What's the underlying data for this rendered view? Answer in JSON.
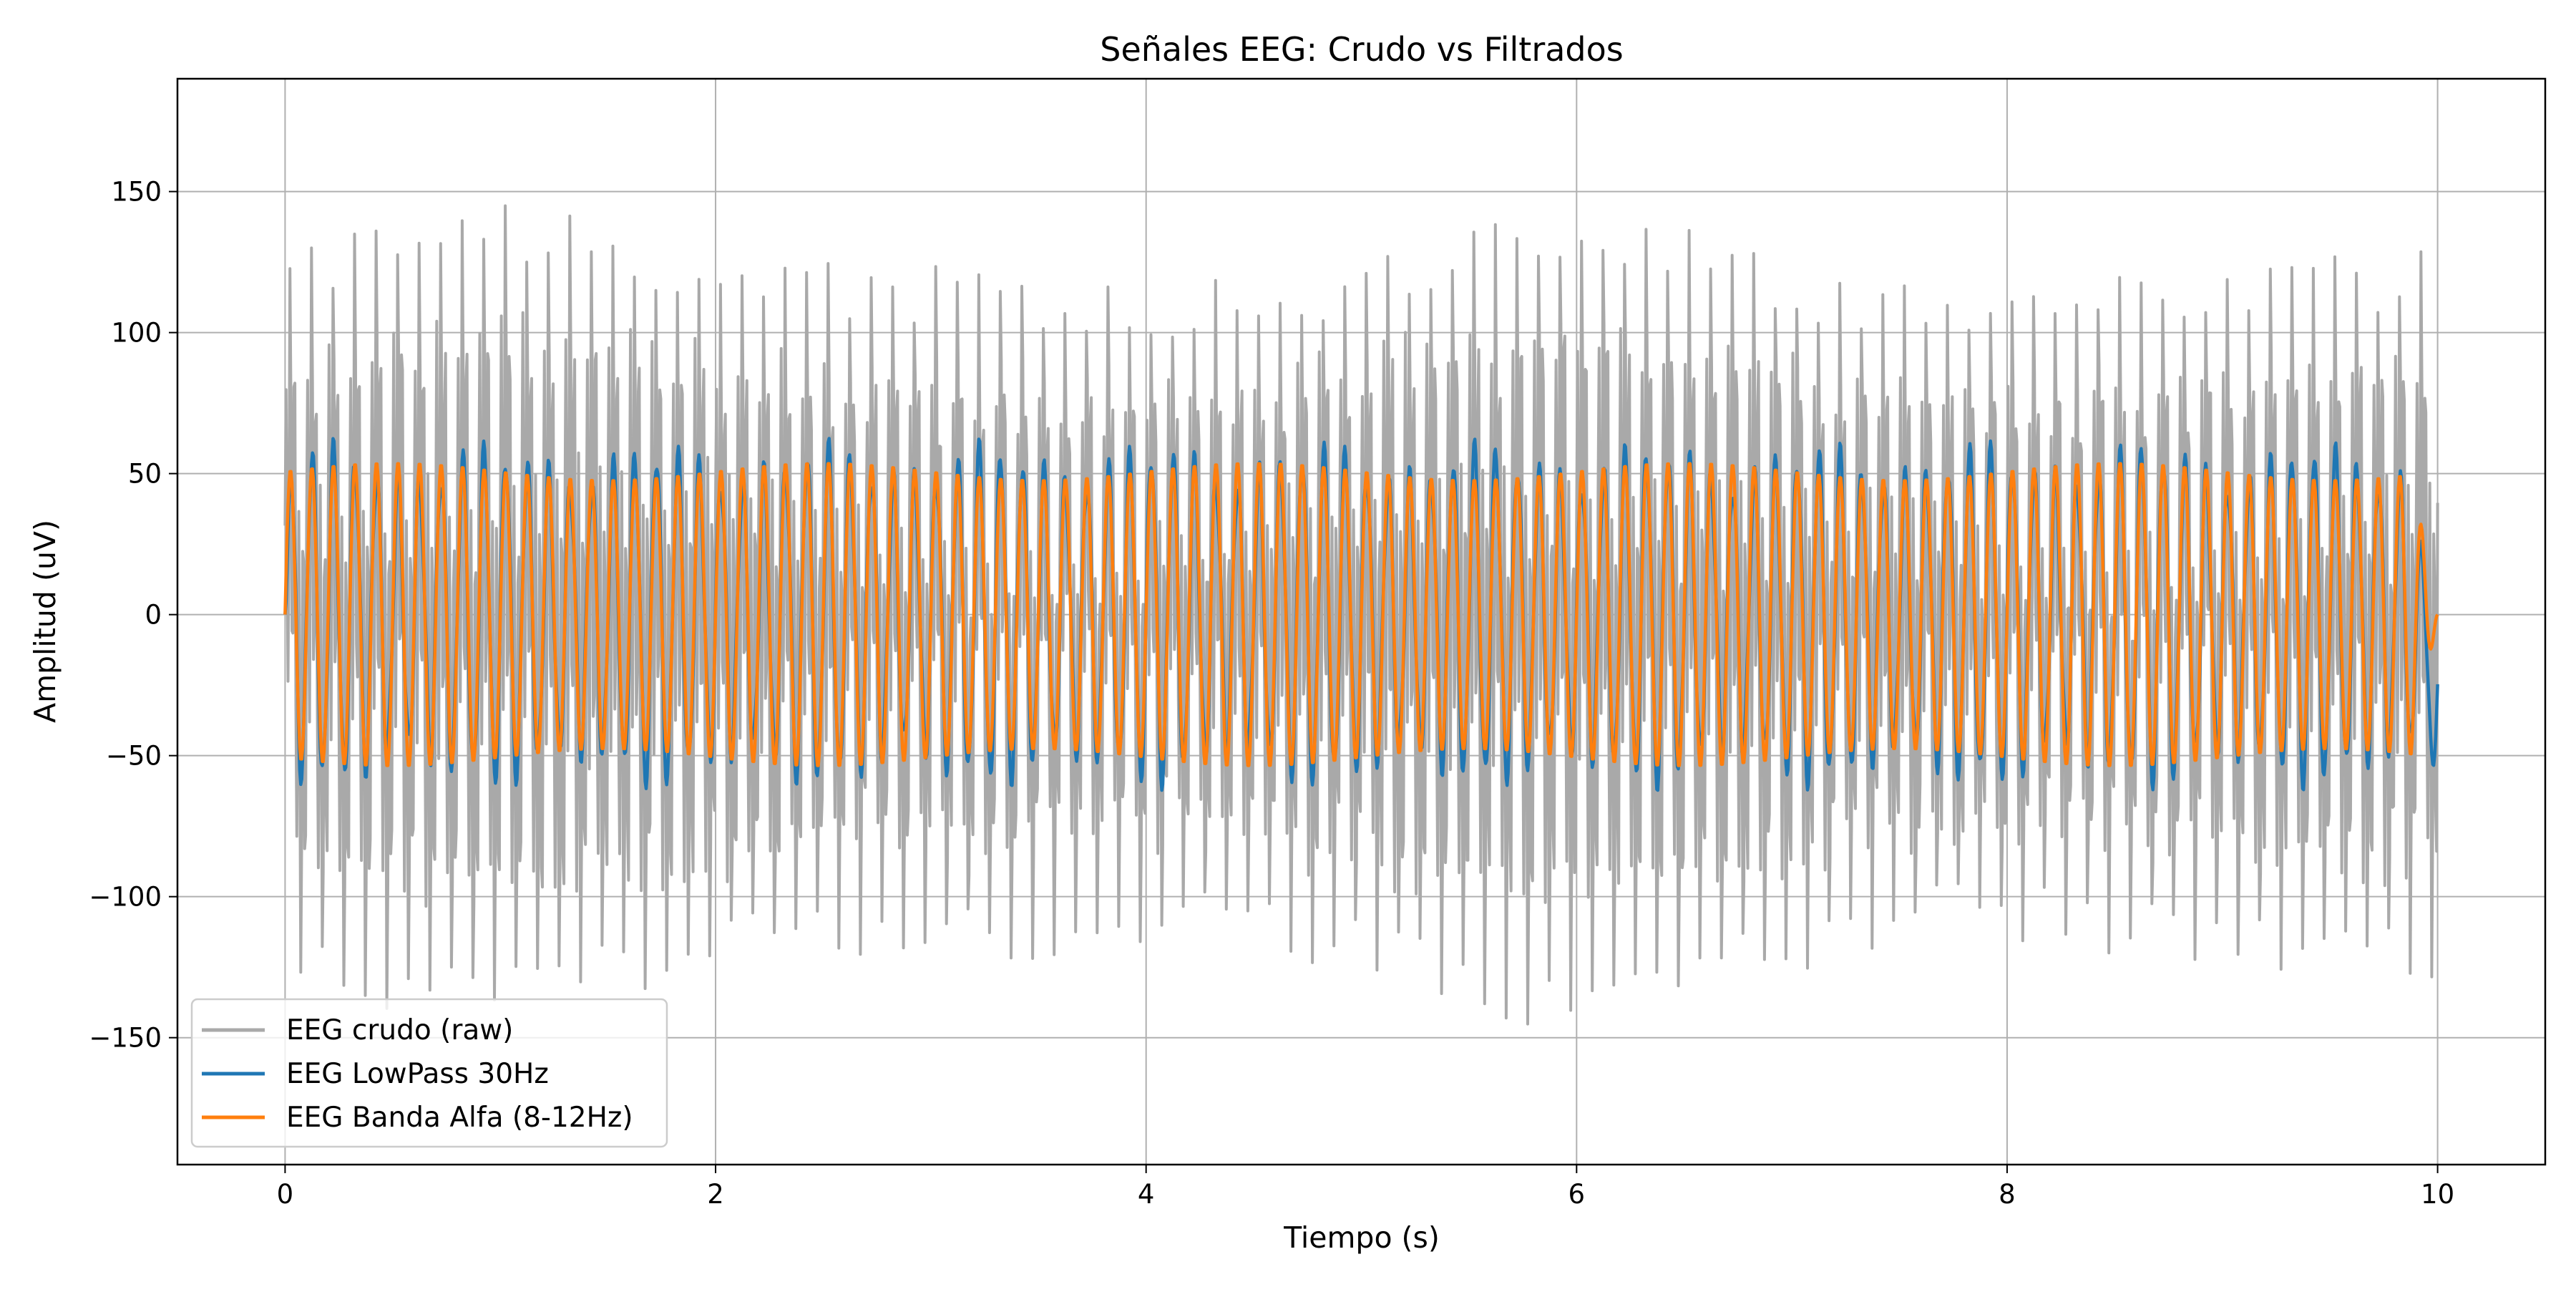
{
  "chart_data": {
    "type": "line",
    "title": "Señales EEG: Crudo vs Filtrados",
    "xlabel": "Tiempo (s)",
    "ylabel": "Amplitud (uV)",
    "xlim": [
      -0.5,
      10.5
    ],
    "ylim": [
      -195,
      190
    ],
    "xticks": [
      0,
      2,
      4,
      6,
      8,
      10
    ],
    "xtick_labels": [
      "0",
      "2",
      "4",
      "6",
      "8",
      "10"
    ],
    "yticks": [
      -150,
      -100,
      -50,
      0,
      50,
      100,
      150
    ],
    "ytick_labels": [
      "−150",
      "−100",
      "−50",
      "0",
      "50",
      "100",
      "150"
    ],
    "grid": true,
    "legend_position": "lower-left",
    "series": [
      {
        "name": "EEG crudo (raw)",
        "color": "#a9a9a9",
        "description_values": {
          "x_start": 0,
          "x_end": 10,
          "dominant_freq_hz": 10,
          "secondary_freq_hz": 50,
          "amplitude_range": [
            -175,
            175
          ]
        }
      },
      {
        "name": "EEG LowPass 30Hz",
        "color": "#1f77b4",
        "description_values": {
          "x_start": 0,
          "x_end": 10,
          "dominant_freq_hz": 10,
          "amplitude_range": [
            -63,
            63
          ],
          "end_value": -27
        }
      },
      {
        "name": "EEG Banda Alfa (8-12Hz)",
        "color": "#ff7f0e",
        "description_values": {
          "x_start": 0,
          "x_end": 10,
          "dominant_freq_hz": 10,
          "amplitude_range": [
            -55,
            55
          ],
          "end_value": 0
        }
      }
    ]
  }
}
